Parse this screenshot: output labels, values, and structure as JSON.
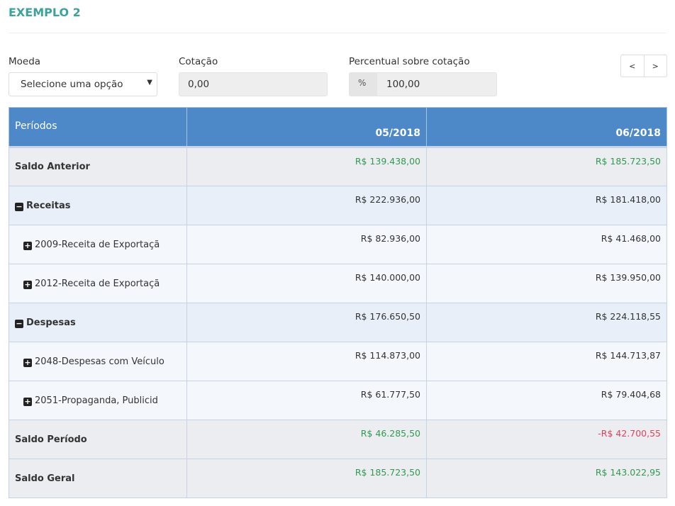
{
  "title": "EXEMPLO 2",
  "form": {
    "moeda_label": "Moeda",
    "moeda_value": "Selecione uma opção",
    "cotacao_label": "Cotação",
    "cotacao_value": "0,00",
    "percentual_label": "Percentual sobre cotação",
    "percentual_addon": "%",
    "percentual_value": "100,00"
  },
  "nav": {
    "prev": "<",
    "next": ">"
  },
  "colors": {
    "header": "#4d89c8",
    "positive": "#2e9a52",
    "negative": "#e0435b",
    "title": "#3aa39a"
  },
  "table": {
    "headers": [
      "Períodos",
      "05/2018",
      "06/2018"
    ],
    "rows": [
      {
        "type": "saldo",
        "label": "Saldo Anterior",
        "values": [
          "R$ 139.438,00",
          "R$ 185.723,50"
        ],
        "colored": true
      },
      {
        "type": "group",
        "icon": "minus-square-icon",
        "label": "Receitas",
        "values": [
          "R$ 222.936,00",
          "R$ 181.418,00"
        ]
      },
      {
        "type": "child",
        "icon": "plus-square-icon",
        "label": "2009-Receita de Exportaçã",
        "values": [
          "R$ 82.936,00",
          "R$ 41.468,00"
        ]
      },
      {
        "type": "child",
        "icon": "plus-square-icon",
        "label": "2012-Receita de Exportaçã",
        "values": [
          "R$ 140.000,00",
          "R$ 139.950,00"
        ]
      },
      {
        "type": "group",
        "icon": "minus-square-icon",
        "label": "Despesas",
        "values": [
          "R$ 176.650,50",
          "R$ 224.118,55"
        ]
      },
      {
        "type": "child",
        "icon": "plus-square-icon",
        "label": "2048-Despesas com Veículo",
        "values": [
          "R$ 114.873,00",
          "R$ 144.713,87"
        ]
      },
      {
        "type": "child",
        "icon": "plus-square-icon",
        "label": "2051-Propaganda, Publicid",
        "values": [
          "R$ 61.777,50",
          "R$ 79.404,68"
        ]
      },
      {
        "type": "saldo",
        "label": "Saldo Período",
        "values": [
          "R$ 46.285,50",
          "-R$ 42.700,55"
        ],
        "colored": true
      },
      {
        "type": "saldo",
        "label": "Saldo Geral",
        "values": [
          "R$ 185.723,50",
          "R$ 143.022,95"
        ],
        "colored": true
      }
    ]
  }
}
